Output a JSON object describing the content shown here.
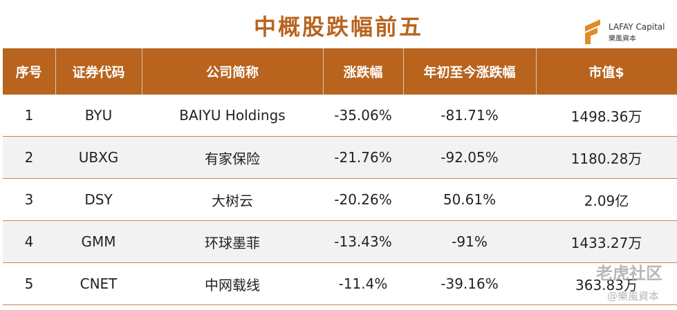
{
  "header": {
    "title": "中概股跌幅前五",
    "brand": "LAFAY Capital",
    "brand_cn": "樂風資本"
  },
  "table": {
    "columns": [
      "序号",
      "证券代码",
      "公司简称",
      "涨跌幅",
      "年初至今涨跌幅",
      "市值$"
    ],
    "rows": [
      [
        "1",
        "BYU",
        "BAIYU Holdings",
        "-35.06%",
        "-81.71%",
        "1498.36万"
      ],
      [
        "2",
        "UBXG",
        "有家保险",
        "-21.76%",
        "-92.05%",
        "1180.28万"
      ],
      [
        "3",
        "DSY",
        "大树云",
        "-20.26%",
        "50.61%",
        "2.09亿"
      ],
      [
        "4",
        "GMM",
        "环球墨菲",
        "-13.43%",
        "-91%",
        "1433.27万"
      ],
      [
        "5",
        "CNET",
        "中网载线",
        "-11.4%",
        "-39.16%",
        "363.83万"
      ]
    ]
  },
  "watermark": {
    "main": "老虎社区",
    "sub": "@樂風資本"
  }
}
